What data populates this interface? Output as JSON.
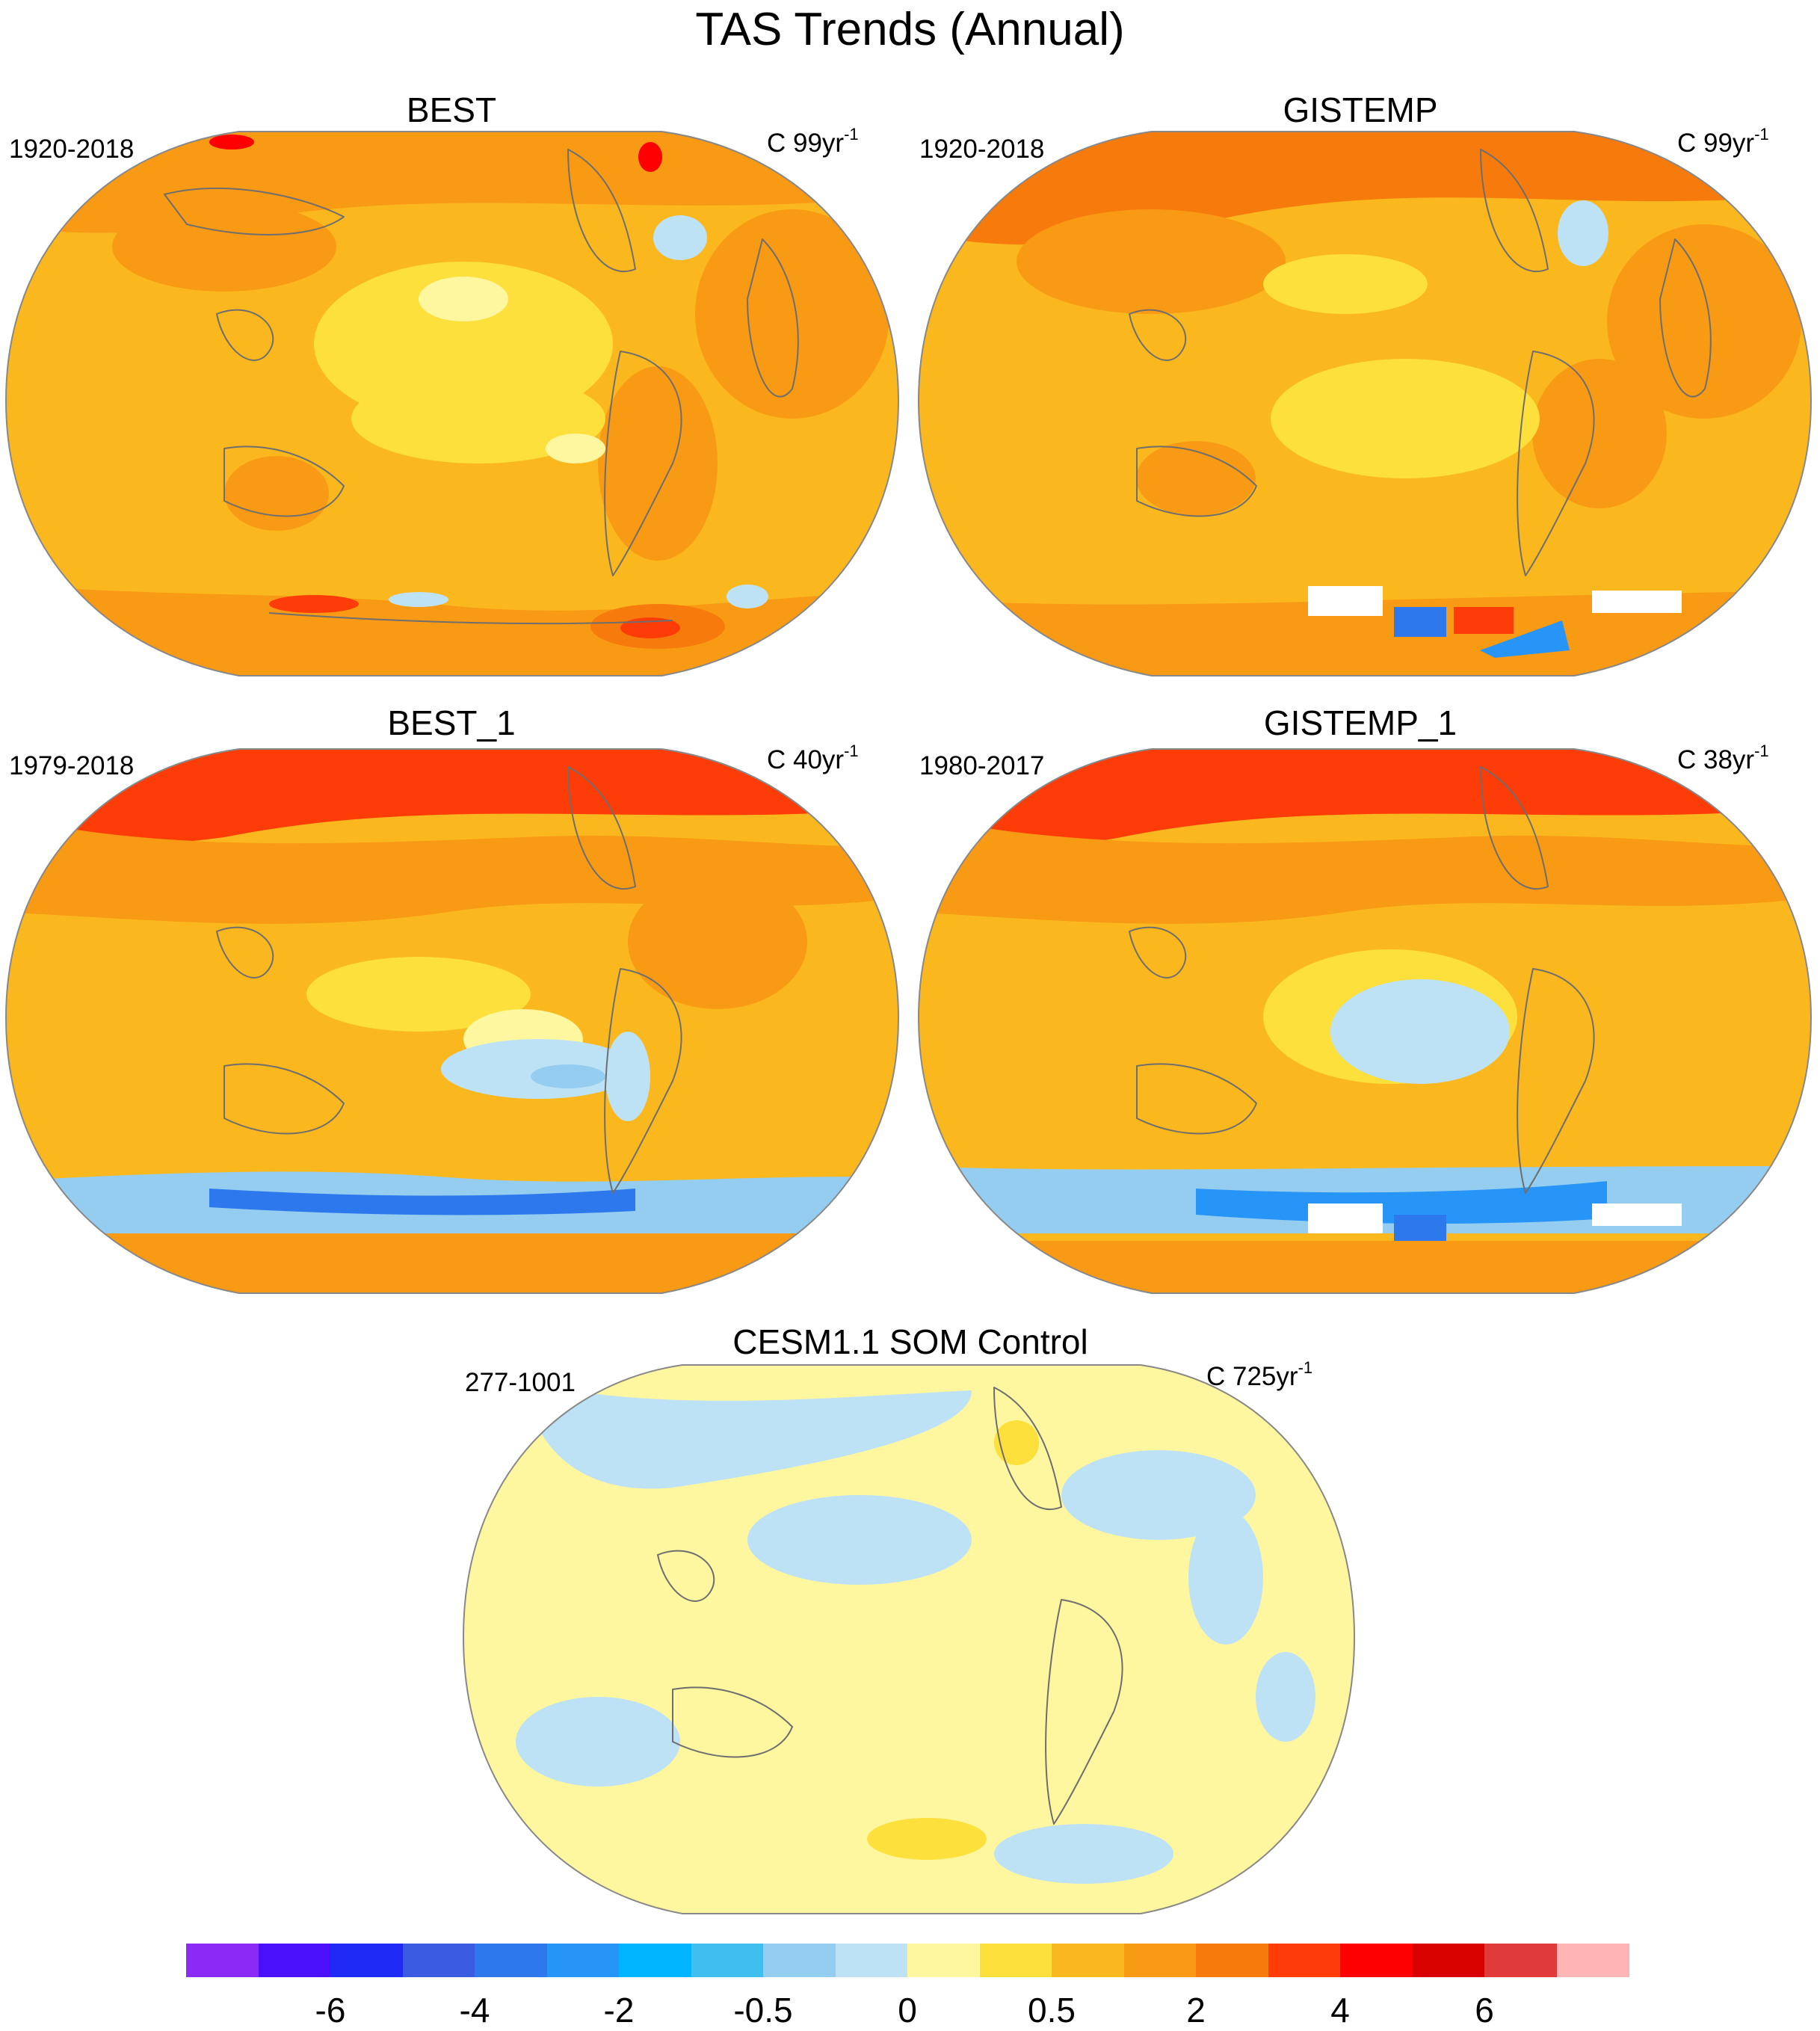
{
  "figure": {
    "title": "TAS Trends (Annual)"
  },
  "panels": [
    {
      "id": "best",
      "title": "BEST",
      "period": "1920-2018",
      "units_prefix": "C 99yr",
      "units_exp": "-1",
      "base_color": "#FBB81E"
    },
    {
      "id": "gistemp",
      "title": "GISTEMP",
      "period": "1920-2018",
      "units_prefix": "C 99yr",
      "units_exp": "-1",
      "base_color": "#FBB81E"
    },
    {
      "id": "best_1",
      "title": "BEST_1",
      "period": "1979-2018",
      "units_prefix": "C 40yr",
      "units_exp": "-1",
      "base_color": "#FBB81E"
    },
    {
      "id": "gistemp_1",
      "title": "GISTEMP_1",
      "period": "1980-2017",
      "units_prefix": "C 38yr",
      "units_exp": "-1",
      "base_color": "#FBB81E"
    },
    {
      "id": "cesm",
      "title": "CESM1.1 SOM Control",
      "period": "277-1001",
      "units_prefix": "C 725yr",
      "units_exp": "-1",
      "base_color": "#FFF6A0"
    }
  ],
  "colorbar": {
    "colors": [
      "#8A2BF5",
      "#4B10FA",
      "#1F2BF5",
      "#3B5BE0",
      "#2E78EE",
      "#2794F8",
      "#00B4FF",
      "#3FBEF0",
      "#94CDEF",
      "#BDE2F6",
      "#FFF6A0",
      "#FDE03C",
      "#FBB81E",
      "#F99A14",
      "#F77A0C",
      "#FE3C07",
      "#FE0000",
      "#D90000",
      "#E13A3A",
      "#FFB5B5"
    ],
    "tick_labels": [
      "-6",
      "-4",
      "-2",
      "-0.5",
      "0",
      "0.5",
      "2",
      "4",
      "6"
    ],
    "tick_after_box": [
      1,
      3,
      5,
      7,
      9,
      11,
      13,
      15,
      17
    ]
  },
  "palette": {
    "light_yellow": "#FFF6A0",
    "yellow": "#FDE03C",
    "gold": "#FBB81E",
    "orange": "#F99A14",
    "dark_orange": "#F77A0C",
    "red_orange": "#FE3C07",
    "red": "#FE0000",
    "light_blue": "#BDE2F6",
    "blue_mid": "#94CDEF",
    "blue": "#3FBEF0",
    "blue_dark": "#2794F8",
    "missing": "#FFFFFF"
  }
}
